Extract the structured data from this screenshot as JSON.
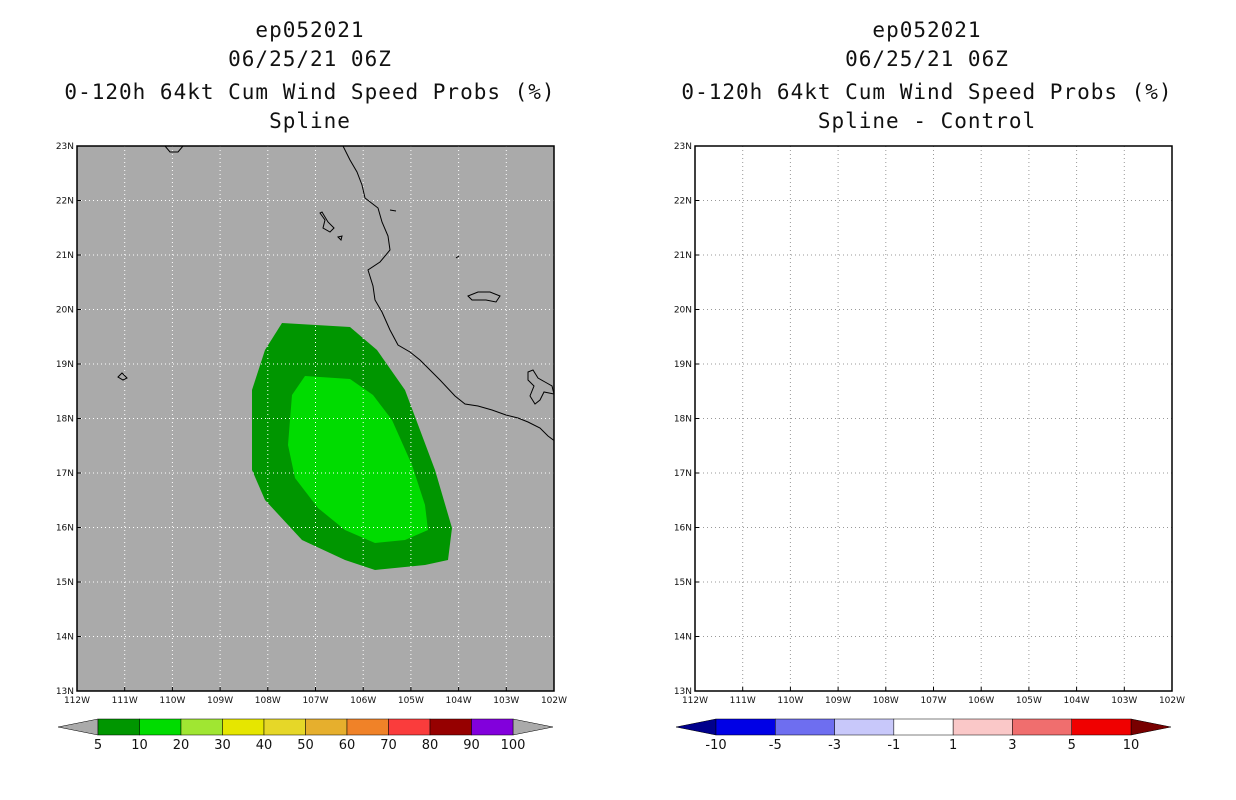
{
  "panels": [
    {
      "title_lines": [
        "ep052021",
        "06/25/21 06Z",
        "0-120h 64kt Cum Wind Speed Probs (%)",
        "Spline"
      ],
      "background": "#aaaaaa",
      "colorbar": {
        "colors": [
          "#009600",
          "#00dc00",
          "#a0e632",
          "#e6e600",
          "#e6d728",
          "#e6af2d",
          "#f08228",
          "#fa3c3c",
          "#960000",
          "#8200dc"
        ],
        "low_arrow": "#aaaaaa",
        "high_arrow": "#aaaaaa",
        "labels": [
          "5",
          "10",
          "20",
          "30",
          "40",
          "50",
          "60",
          "70",
          "80",
          "90",
          "100"
        ]
      }
    },
    {
      "title_lines": [
        "ep052021",
        "06/25/21 06Z",
        "0-120h 64kt Cum Wind Speed Probs (%)",
        "Spline - Control"
      ],
      "background": "#ffffff",
      "colorbar": {
        "colors": [
          "#0000e6",
          "#6e6ef0",
          "#c8c8fa",
          "#ffffff",
          "#fac8c8",
          "#f06e6e",
          "#f00000"
        ],
        "low_arrow": "#00008c",
        "high_arrow": "#780000",
        "labels": [
          "-10",
          "-5",
          "-3",
          "-1",
          "1",
          "3",
          "5",
          "10"
        ]
      }
    }
  ],
  "map": {
    "x_ticks": [
      "112W",
      "111W",
      "110W",
      "109W",
      "108W",
      "107W",
      "106W",
      "105W",
      "104W",
      "103W",
      "102W"
    ],
    "y_ticks": [
      "13N",
      "14N",
      "15N",
      "16N",
      "17N",
      "18N",
      "19N",
      "20N",
      "21N",
      "22N",
      "23N"
    ],
    "contour_colors": {
      "outer": "#009600",
      "inner": "#00dc00"
    }
  }
}
